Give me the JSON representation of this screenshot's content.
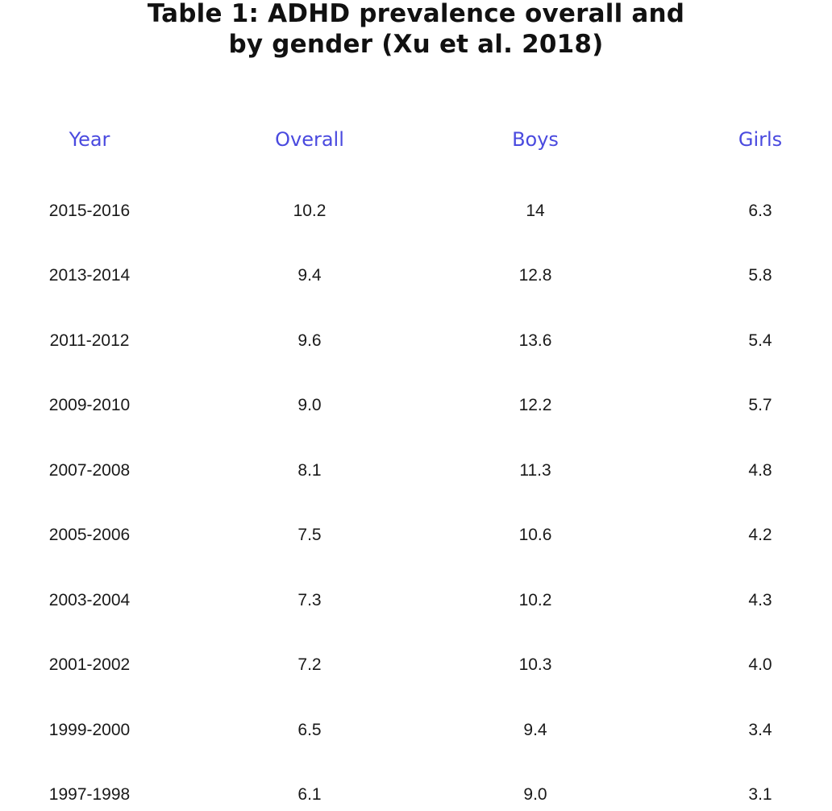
{
  "title": {
    "line1": "Table 1: ADHD prevalence overall and",
    "line2": "by gender (Xu et al. 2018)"
  },
  "table": {
    "headers": [
      "Year",
      "Overall",
      "Boys",
      "Girls"
    ],
    "rows": [
      [
        "2015-2016",
        "10.2",
        "14",
        "6.3"
      ],
      [
        "2013-2014",
        "9.4",
        "12.8",
        "5.8"
      ],
      [
        "2011-2012",
        "9.6",
        "13.6",
        "5.4"
      ],
      [
        "2009-2010",
        "9.0",
        "12.2",
        "5.7"
      ],
      [
        "2007-2008",
        "8.1",
        "11.3",
        "4.8"
      ],
      [
        "2005-2006",
        "7.5",
        "10.6",
        "4.2"
      ],
      [
        "2003-2004",
        "7.3",
        "10.2",
        "4.3"
      ],
      [
        "2001-2002",
        "7.2",
        "10.3",
        "4.0"
      ],
      [
        "1999-2000",
        "6.5",
        "9.4",
        "3.4"
      ],
      [
        "1997-1998",
        "6.1",
        "9.0",
        "3.1"
      ]
    ]
  },
  "colors": {
    "header_text": "#4a4adf",
    "body_text": "#1a1a1a",
    "title_text": "#111111"
  }
}
